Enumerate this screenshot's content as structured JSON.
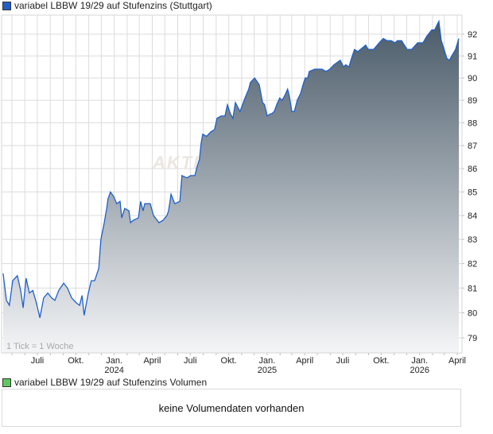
{
  "legend": {
    "label": "variabel LBBW 19/29 auf Stufenzins (Stuttgart)",
    "color": "#1f5fcc"
  },
  "volume": {
    "label": "variabel LBBW 19/29 auf Stufenzins Volumen",
    "color": "#5cc85c",
    "message": "keine Volumendaten vorhanden"
  },
  "tick_note": "1 Tick = 1 Woche",
  "watermark": "AKTI",
  "colors": {
    "line": "#1f5fcc",
    "fill_top": "#4a5b69",
    "fill_bottom": "#f4f5f7",
    "grid": "#dcdcdc"
  },
  "chart_data": {
    "type": "area",
    "title": "",
    "xlabel": "",
    "ylabel": "",
    "y_scale": "log",
    "ylim": [
      78.8,
      92.9
    ],
    "grid": true,
    "y_ticks": [
      79,
      80,
      81,
      82,
      83,
      84,
      85,
      86,
      87,
      88,
      89,
      90,
      91,
      92
    ],
    "x_ticks": [
      {
        "date": "2023-07-01",
        "label": "Juli",
        "year": ""
      },
      {
        "date": "2023-10-01",
        "label": "Okt.",
        "year": ""
      },
      {
        "date": "2024-01-01",
        "label": "Jan.",
        "year": "2024"
      },
      {
        "date": "2024-04-01",
        "label": "April",
        "year": ""
      },
      {
        "date": "2024-07-01",
        "label": "Juli",
        "year": ""
      },
      {
        "date": "2024-10-01",
        "label": "Okt.",
        "year": ""
      },
      {
        "date": "2025-01-01",
        "label": "Jan.",
        "year": "2025"
      },
      {
        "date": "2025-04-01",
        "label": "April",
        "year": ""
      },
      {
        "date": "2025-07-01",
        "label": "Juli",
        "year": ""
      },
      {
        "date": "2025-10-01",
        "label": "Okt.",
        "year": ""
      },
      {
        "date": "2026-01-01",
        "label": "Jan.",
        "year": "2026"
      },
      {
        "date": "2026-04-01",
        "label": "April",
        "year": ""
      }
    ],
    "series": [
      {
        "x": [
          "2023-04-10",
          "2023-04-18",
          "2023-04-25",
          "2023-05-03",
          "2023-05-14",
          "2023-05-22",
          "2023-05-28",
          "2023-06-04",
          "2023-06-12",
          "2023-06-20",
          "2023-06-27",
          "2023-07-07",
          "2023-07-16",
          "2023-07-26",
          "2023-08-04",
          "2023-08-12",
          "2023-08-21",
          "2023-09-02",
          "2023-09-11",
          "2023-09-21",
          "2023-10-02",
          "2023-10-10",
          "2023-10-16",
          "2023-10-21",
          "2023-10-31",
          "2023-11-07",
          "2023-11-15",
          "2023-11-25",
          "2023-11-30",
          "2023-12-08",
          "2023-12-14",
          "2023-12-17",
          "2023-12-23",
          "2023-12-31",
          "2024-01-07",
          "2024-01-15",
          "2024-01-19",
          "2024-01-26",
          "2024-02-05",
          "2024-02-09",
          "2024-02-16",
          "2024-02-28",
          "2024-03-04",
          "2024-03-10",
          "2024-03-14",
          "2024-03-27",
          "2024-04-04",
          "2024-04-17",
          "2024-04-27",
          "2024-05-06",
          "2024-05-10",
          "2024-05-16",
          "2024-05-25",
          "2024-06-06",
          "2024-06-11",
          "2024-06-23",
          "2024-07-02",
          "2024-07-12",
          "2024-07-16",
          "2024-07-23",
          "2024-07-27",
          "2024-07-31",
          "2024-08-09",
          "2024-08-19",
          "2024-08-28",
          "2024-09-03",
          "2024-09-13",
          "2024-09-22",
          "2024-09-28",
          "2024-10-05",
          "2024-10-11",
          "2024-10-17",
          "2024-10-28",
          "2024-11-09",
          "2024-11-18",
          "2024-11-22",
          "2024-12-02",
          "2024-12-13",
          "2024-12-21",
          "2024-12-26",
          "2025-01-01",
          "2025-01-09",
          "2025-01-12",
          "2025-01-18",
          "2025-01-24",
          "2025-01-31",
          "2025-02-06",
          "2025-02-12",
          "2025-02-19",
          "2025-02-23",
          "2025-03-01",
          "2025-03-07",
          "2025-03-14",
          "2025-03-22",
          "2025-03-28",
          "2025-04-02",
          "2025-04-08",
          "2025-04-12",
          "2025-04-25",
          "2025-05-12",
          "2025-05-22",
          "2025-05-31",
          "2025-06-10",
          "2025-06-25",
          "2025-07-03",
          "2025-07-08",
          "2025-07-16",
          "2025-07-22",
          "2025-07-29",
          "2025-08-06",
          "2025-08-25",
          "2025-08-31",
          "2025-09-13",
          "2025-09-26",
          "2025-10-06",
          "2025-10-15",
          "2025-10-25",
          "2025-11-03",
          "2025-11-09",
          "2025-11-19",
          "2025-12-02",
          "2025-12-13",
          "2025-12-27",
          "2026-01-09",
          "2026-01-18",
          "2026-01-30",
          "2026-02-06",
          "2026-02-16",
          "2026-02-22",
          "2026-02-27",
          "2026-03-07",
          "2026-03-13",
          "2026-03-22",
          "2026-03-28",
          "2026-04-05"
        ],
        "y": [
          81.6,
          80.5,
          80.3,
          81.3,
          81.5,
          80.9,
          80.2,
          81.4,
          80.8,
          80.9,
          80.5,
          79.8,
          80.6,
          80.8,
          80.6,
          80.5,
          80.9,
          81.2,
          81.0,
          80.6,
          80.4,
          80.3,
          80.7,
          79.9,
          80.8,
          81.3,
          81.3,
          81.8,
          83.0,
          83.7,
          84.3,
          84.7,
          85.0,
          84.8,
          84.5,
          84.6,
          83.9,
          84.3,
          84.2,
          83.7,
          83.8,
          83.9,
          84.6,
          84.2,
          84.5,
          84.5,
          84.0,
          83.7,
          83.8,
          84.0,
          84.2,
          84.9,
          84.5,
          84.6,
          85.7,
          85.6,
          85.7,
          85.7,
          86.0,
          86.4,
          87.1,
          87.5,
          87.4,
          87.6,
          87.7,
          88.2,
          88.3,
          88.3,
          88.8,
          88.4,
          88.2,
          88.9,
          88.5,
          89.1,
          89.5,
          89.8,
          90.0,
          89.7,
          88.9,
          88.8,
          88.3,
          88.4,
          88.4,
          88.5,
          88.8,
          89.1,
          89.0,
          89.2,
          89.5,
          89.2,
          88.5,
          88.5,
          89.0,
          89.3,
          89.7,
          90.0,
          90.0,
          90.3,
          90.4,
          90.4,
          90.3,
          90.4,
          90.6,
          90.8,
          90.5,
          90.6,
          90.5,
          90.9,
          91.3,
          91.2,
          91.5,
          91.3,
          91.3,
          91.6,
          91.8,
          91.7,
          91.7,
          91.6,
          91.7,
          91.7,
          91.3,
          91.3,
          91.6,
          91.6,
          91.9,
          92.2,
          92.2,
          92.6,
          91.7,
          91.4,
          90.9,
          90.8,
          91.1,
          91.3,
          91.8
        ]
      }
    ]
  }
}
